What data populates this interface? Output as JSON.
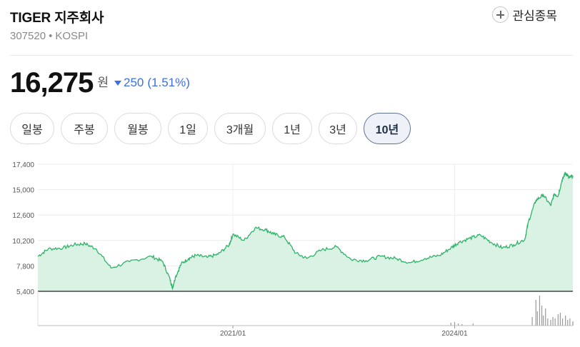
{
  "stock": {
    "name": "TIGER 지주회사",
    "code": "307520",
    "separator": "•",
    "market": "KOSPI"
  },
  "watchlist": {
    "label": "관심종목",
    "icon": "plus-circle-icon"
  },
  "quote": {
    "price": "16,275",
    "unit": "원",
    "change_direction": "down",
    "change": "250",
    "change_pct": "(1.51%)",
    "change_color": "#3d6fe6"
  },
  "periods": [
    {
      "label": "일봉",
      "active": false
    },
    {
      "label": "주봉",
      "active": false
    },
    {
      "label": "월봉",
      "active": false
    },
    {
      "label": "1일",
      "active": false
    },
    {
      "label": "3개월",
      "active": false
    },
    {
      "label": "1년",
      "active": false
    },
    {
      "label": "3년",
      "active": false
    },
    {
      "label": "10년",
      "active": true
    }
  ],
  "chart_data": {
    "type": "area",
    "line_color": "#2fb36a",
    "fill_color": "#d9f2e3",
    "yticks": [
      "17,400",
      "15,000",
      "12,600",
      "10,200",
      "7,800",
      "5,400"
    ],
    "ylim": [
      5400,
      17400
    ],
    "xticks": [
      "2021/01",
      "2024/01"
    ],
    "xlim": [
      2018.36,
      2025.6
    ],
    "series": [
      {
        "x": [
          2018.36,
          2018.5,
          2018.7,
          2018.85,
          2019.0,
          2019.15,
          2019.35,
          2019.6,
          2019.9,
          2020.05,
          2020.15,
          2020.18,
          2020.22,
          2020.3,
          2020.4,
          2020.5,
          2020.65,
          2020.8,
          2020.95,
          2021.0,
          2021.15,
          2021.3,
          2021.45,
          2021.55,
          2021.7,
          2021.85,
          2022.0,
          2022.2,
          2022.4,
          2022.6,
          2022.8,
          2023.0,
          2023.2,
          2023.4,
          2023.6,
          2023.8,
          2023.95,
          2024.05,
          2024.2,
          2024.35,
          2024.5,
          2024.65,
          2024.8,
          2024.95,
          2025.0,
          2025.1,
          2025.2,
          2025.3,
          2025.35,
          2025.4,
          2025.45,
          2025.5,
          2025.55,
          2025.6
        ],
        "y": [
          8700,
          9400,
          9500,
          9800,
          9900,
          9400,
          7600,
          8200,
          8700,
          8200,
          6500,
          5700,
          6700,
          8000,
          8500,
          8800,
          8600,
          8900,
          9800,
          10800,
          10200,
          11400,
          11200,
          10800,
          10500,
          9000,
          8500,
          9300,
          9600,
          8400,
          8300,
          8700,
          8500,
          8100,
          8500,
          8800,
          9500,
          10000,
          10400,
          10700,
          10000,
          9500,
          9800,
          10300,
          12000,
          14000,
          14500,
          13500,
          14600,
          14400,
          15800,
          16600,
          16100,
          16300
        ]
      }
    ],
    "volume": {
      "x": [
        2023.95,
        2024.0,
        2024.05,
        2024.1,
        2024.25,
        2025.05,
        2025.1,
        2025.12,
        2025.15,
        2025.18,
        2025.2,
        2025.23,
        2025.26,
        2025.3,
        2025.33,
        2025.36,
        2025.4,
        2025.43,
        2025.46,
        2025.5,
        2025.53,
        2025.56,
        2025.6
      ],
      "y": [
        4,
        5,
        3,
        2,
        3,
        12,
        36,
        20,
        42,
        28,
        14,
        24,
        10,
        8,
        12,
        10,
        16,
        18,
        10,
        14,
        8,
        10,
        6
      ]
    }
  }
}
